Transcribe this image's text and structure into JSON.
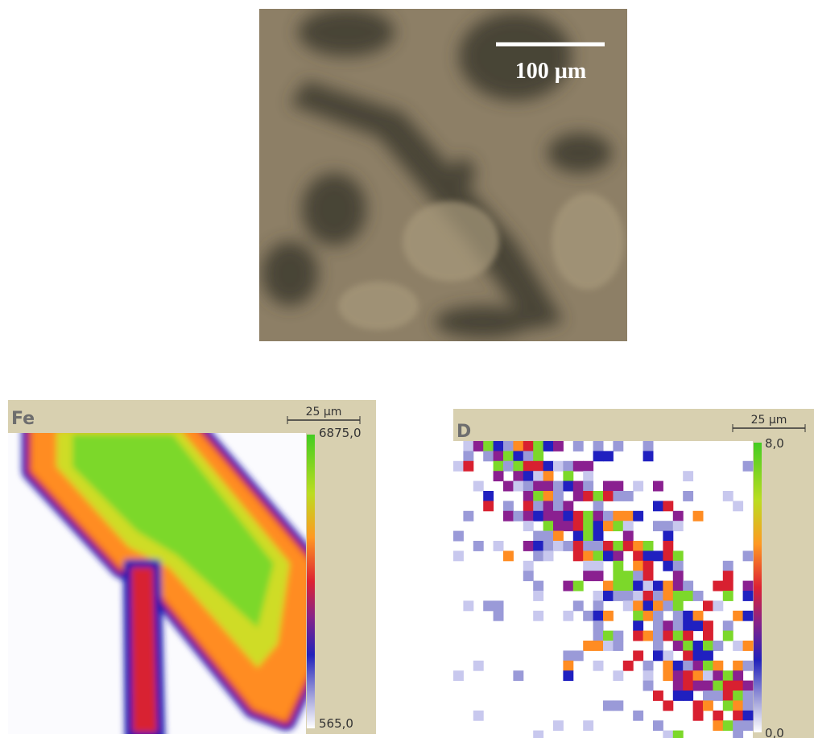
{
  "micrograph": {
    "scale_label": "100 µm"
  },
  "maps": [
    {
      "element": "Fe",
      "scale_label": "25 µm",
      "max_label": "6875,0",
      "min_label": "565,0"
    },
    {
      "element": "D",
      "scale_label": "25 µm",
      "max_label": "8,0",
      "min_label": "0,0"
    }
  ]
}
